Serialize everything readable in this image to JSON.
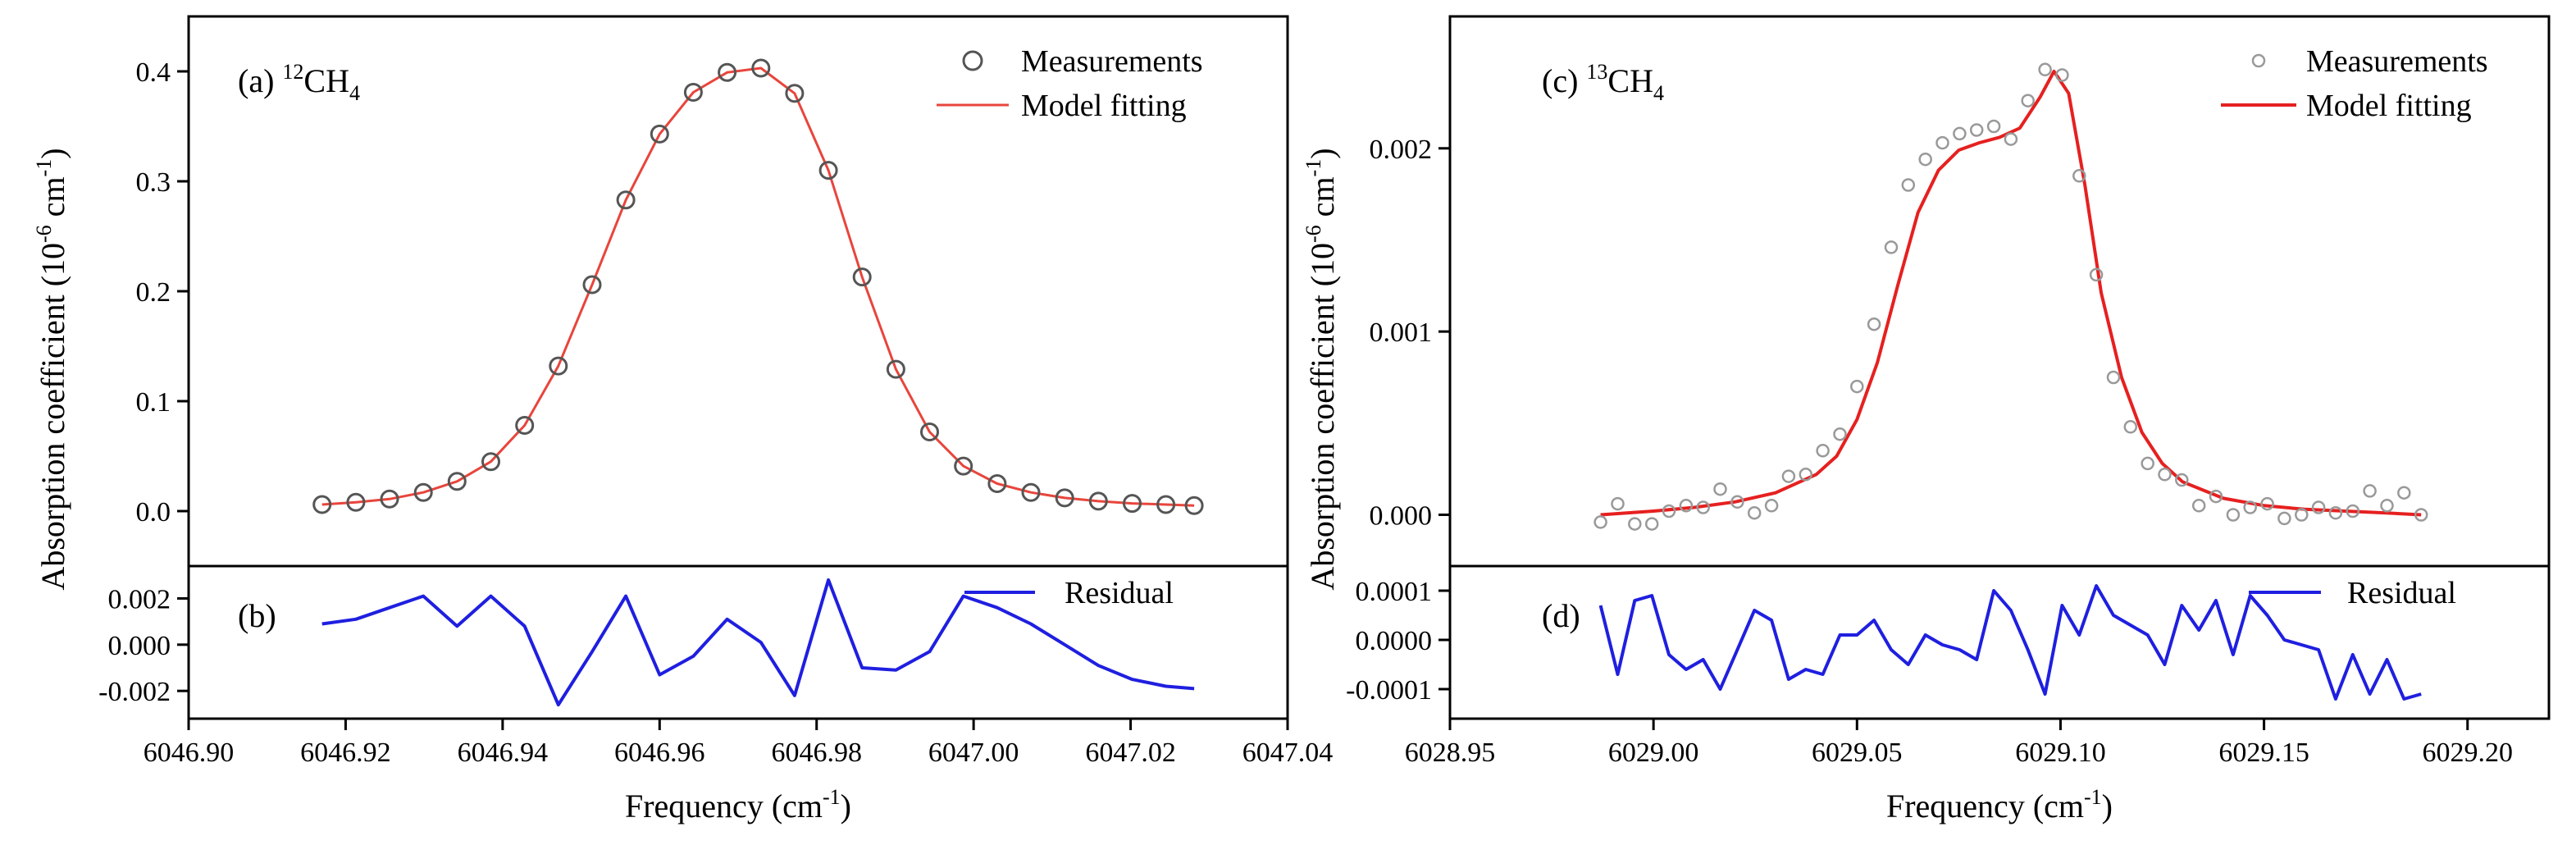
{
  "chart_data": [
    {
      "panel": "a",
      "type": "scatter",
      "panel_label": "(a) ",
      "species": {
        "mass": "12",
        "base": "CH",
        "sub": "4"
      },
      "ylabel": {
        "pre": "Absorption coefficient (10",
        "sup": "-6",
        "post": " cm",
        "sup2": "-1",
        "end": ")"
      },
      "xlim": [
        6046.9,
        6047.04
      ],
      "ylim": [
        -0.05,
        0.45
      ],
      "yticks": [
        "0.0",
        "0.1",
        "0.2",
        "0.3",
        "0.4"
      ],
      "ytick_values": [
        0.0,
        0.1,
        0.2,
        0.3,
        0.4
      ],
      "legend": [
        "Measurements",
        "Model fitting"
      ],
      "legend_position": "top-right",
      "series": [
        {
          "name": "Measurements",
          "marker": "open-circle",
          "color": "#555555",
          "x": [
            6046.917,
            6046.9213,
            6046.9256,
            6046.9299,
            6046.9342,
            6046.9385,
            6046.9428,
            6046.9471,
            6046.9514,
            6046.9557,
            6046.96,
            6046.9643,
            6046.9686,
            6046.9729,
            6046.9772,
            6046.9815,
            6046.9858,
            6046.9901,
            6046.9944,
            6046.9987,
            6047.003,
            6047.0073,
            6047.0116,
            6047.0159,
            6047.0202,
            6047.0245,
            6047.0281
          ],
          "y": [
            0.006,
            0.008,
            0.011,
            0.017,
            0.027,
            0.045,
            0.078,
            0.132,
            0.206,
            0.283,
            0.343,
            0.381,
            0.399,
            0.403,
            0.38,
            0.31,
            0.213,
            0.129,
            0.072,
            0.041,
            0.025,
            0.017,
            0.012,
            0.009,
            0.007,
            0.006,
            0.005
          ]
        },
        {
          "name": "Model fitting",
          "marker": "line",
          "color": "#e8453c",
          "x": [
            6046.917,
            6046.9213,
            6046.9256,
            6046.9299,
            6046.9342,
            6046.9385,
            6046.9428,
            6046.9471,
            6046.9514,
            6046.9557,
            6046.96,
            6046.9643,
            6046.9686,
            6046.9729,
            6046.9772,
            6046.9815,
            6046.9858,
            6046.9901,
            6046.9944,
            6046.9987,
            6047.003,
            6047.0073,
            6047.0116,
            6047.0159,
            6047.0202,
            6047.0245,
            6047.0281
          ],
          "y": [
            0.006,
            0.008,
            0.011,
            0.017,
            0.027,
            0.045,
            0.078,
            0.132,
            0.206,
            0.283,
            0.343,
            0.381,
            0.399,
            0.403,
            0.38,
            0.31,
            0.213,
            0.129,
            0.072,
            0.041,
            0.025,
            0.017,
            0.012,
            0.009,
            0.007,
            0.006,
            0.005
          ]
        }
      ]
    },
    {
      "panel": "b",
      "type": "line",
      "panel_label": "(b)",
      "xlabel": {
        "pre": "Frequency (cm",
        "sup": "-1",
        "end": ")"
      },
      "xlim": [
        6046.9,
        6047.04
      ],
      "xticks": [
        "6046.90",
        "6046.92",
        "6046.94",
        "6046.96",
        "6046.98",
        "6047.00",
        "6047.02",
        "6047.04"
      ],
      "xtick_values": [
        6046.9,
        6046.92,
        6046.94,
        6046.96,
        6046.98,
        6047.0,
        6047.02,
        6047.04
      ],
      "ylim": [
        -0.0032,
        0.0034
      ],
      "yticks": [
        "0.002",
        "0.000",
        "-0.002"
      ],
      "ytick_values": [
        0.002,
        0.0,
        -0.002
      ],
      "legend": [
        "Residual"
      ],
      "legend_position": "top-right",
      "series": [
        {
          "name": "Residual",
          "color": "#1f1fe0",
          "x": [
            6046.917,
            6046.9213,
            6046.9256,
            6046.9299,
            6046.9342,
            6046.9385,
            6046.9428,
            6046.9471,
            6046.9514,
            6046.9557,
            6046.96,
            6046.9643,
            6046.9686,
            6046.9729,
            6046.9772,
            6046.9815,
            6046.9858,
            6046.9901,
            6046.9944,
            6046.9987,
            6047.003,
            6047.0073,
            6047.0116,
            6047.0159,
            6047.0202,
            6047.0245,
            6047.0281
          ],
          "y": [
            0.0009,
            0.0011,
            0.0016,
            0.0021,
            0.0008,
            0.0021,
            0.0008,
            -0.0026,
            -0.0003,
            0.0021,
            -0.0013,
            -0.0005,
            0.0011,
            0.0001,
            -0.0022,
            0.0028,
            -0.001,
            -0.0011,
            -0.0003,
            0.0021,
            0.0016,
            0.0009,
            0.0,
            -0.0009,
            -0.0015,
            -0.0018,
            -0.0019
          ]
        }
      ]
    },
    {
      "panel": "c",
      "type": "scatter",
      "panel_label": "(c) ",
      "species": {
        "mass": "13",
        "base": "CH",
        "sub": "4"
      },
      "ylabel": {
        "pre": "Absorption coefficient (10",
        "sup": "-6",
        "post": " cm",
        "sup2": "-1",
        "end": ")"
      },
      "xlim": [
        6028.95,
        6029.22
      ],
      "ylim": [
        -0.00028,
        0.00272
      ],
      "yticks": [
        "0.000",
        "0.001",
        "0.002"
      ],
      "ytick_values": [
        0.0,
        0.001,
        0.002
      ],
      "legend": [
        "Measurements",
        "Model fitting"
      ],
      "legend_position": "top-right",
      "series": [
        {
          "name": "Measurements",
          "marker": "open-circle",
          "color": "#999999",
          "x": [
            6028.987,
            6028.9912,
            6028.9954,
            6028.9996,
            6029.0038,
            6029.008,
            6029.0122,
            6029.0164,
            6029.0206,
            6029.0248,
            6029.029,
            6029.0332,
            6029.0374,
            6029.0416,
            6029.0458,
            6029.05,
            6029.0542,
            6029.0584,
            6029.0626,
            6029.0668,
            6029.071,
            6029.0752,
            6029.0794,
            6029.0836,
            6029.0878,
            6029.092,
            6029.0962,
            6029.1004,
            6029.1046,
            6029.1088,
            6029.113,
            6029.1172,
            6029.1214,
            6029.1256,
            6029.1298,
            6029.134,
            6029.1382,
            6029.1424,
            6029.1466,
            6029.1508,
            6029.155,
            6029.1592,
            6029.1634,
            6029.1676,
            6029.1718,
            6029.176,
            6029.1802,
            6029.1844,
            6029.1886
          ],
          "y": [
            -4e-05,
            6e-05,
            -5e-05,
            -5e-05,
            2e-05,
            5e-05,
            4e-05,
            0.00014,
            7e-05,
            1e-05,
            5e-05,
            0.00021,
            0.00022,
            0.00035,
            0.00044,
            0.0007,
            0.00104,
            0.00146,
            0.0018,
            0.00194,
            0.00203,
            0.00208,
            0.0021,
            0.00212,
            0.00205,
            0.00226,
            0.00243,
            0.0024,
            0.00185,
            0.00131,
            0.00075,
            0.00048,
            0.00028,
            0.00022,
            0.00019,
            5e-05,
            0.0001,
            0.0,
            4e-05,
            6e-05,
            -2e-05,
            0.0,
            4e-05,
            1e-05,
            2e-05,
            0.00013,
            5e-05,
            0.00012,
            0.0
          ]
        },
        {
          "name": "Model fitting",
          "marker": "line",
          "color": "#e62020",
          "x": [
            6028.987,
            6029.0,
            6029.01,
            6029.02,
            6029.03,
            6029.04,
            6029.045,
            6029.05,
            6029.055,
            6029.06,
            6029.065,
            6029.07,
            6029.075,
            6029.08,
            6029.085,
            6029.09,
            6029.095,
            6029.0984,
            6029.102,
            6029.106,
            6029.11,
            6029.115,
            6029.12,
            6029.125,
            6029.13,
            6029.14,
            6029.15,
            6029.16,
            6029.17,
            6029.18,
            6029.1886
          ],
          "y": [
            0.0,
            2e-05,
            4e-05,
            7e-05,
            0.00012,
            0.00022,
            0.00032,
            0.00052,
            0.00083,
            0.00125,
            0.00165,
            0.00188,
            0.00199,
            0.00203,
            0.00206,
            0.00211,
            0.00228,
            0.00242,
            0.0023,
            0.0018,
            0.00121,
            0.00075,
            0.00045,
            0.00028,
            0.00018,
            9e-05,
            5e-05,
            3e-05,
            2e-05,
            1e-05,
            0.0
          ]
        }
      ]
    },
    {
      "panel": "d",
      "type": "line",
      "panel_label": "(d)",
      "xlabel": {
        "pre": "Frequency (cm",
        "sup": "-1",
        "end": ")"
      },
      "xlim": [
        6028.95,
        6029.22
      ],
      "xticks": [
        "6028.95",
        "6029.00",
        "6029.05",
        "6029.10",
        "6029.15",
        "6029.20"
      ],
      "xtick_values": [
        6028.95,
        6029.0,
        6029.05,
        6029.1,
        6029.15,
        6029.2
      ],
      "ylim": [
        -0.00016,
        0.00015
      ],
      "yticks": [
        "0.0001",
        "0.0000",
        "-0.0001"
      ],
      "ytick_values": [
        0.0001,
        0.0,
        -0.0001
      ],
      "legend": [
        "Residual"
      ],
      "legend_position": "top-right",
      "series": [
        {
          "name": "Residual",
          "color": "#1f1fe0",
          "x": [
            6028.987,
            6028.9912,
            6028.9954,
            6028.9996,
            6029.0038,
            6029.008,
            6029.0122,
            6029.0164,
            6029.0206,
            6029.0248,
            6029.029,
            6029.0332,
            6029.0374,
            6029.0416,
            6029.0458,
            6029.05,
            6029.0542,
            6029.0584,
            6029.0626,
            6029.0668,
            6029.071,
            6029.0752,
            6029.0794,
            6029.0836,
            6029.0878,
            6029.092,
            6029.0962,
            6029.1004,
            6029.1046,
            6029.1088,
            6029.113,
            6029.1172,
            6029.1214,
            6029.1256,
            6029.1298,
            6029.134,
            6029.1382,
            6029.1424,
            6029.1466,
            6029.1508,
            6029.155,
            6029.1592,
            6029.1634,
            6029.1676,
            6029.1718,
            6029.176,
            6029.1802,
            6029.1844,
            6029.1886
          ],
          "y": [
            7e-05,
            -7e-05,
            8e-05,
            9e-05,
            -3e-05,
            -6e-05,
            -4e-05,
            -0.0001,
            -2e-05,
            6e-05,
            4e-05,
            -8e-05,
            -6e-05,
            -7e-05,
            1e-05,
            1e-05,
            4e-05,
            -2e-05,
            -5e-05,
            1e-05,
            -1e-05,
            -2e-05,
            -4e-05,
            0.0001,
            6e-05,
            -2e-05,
            -0.00011,
            7e-05,
            1e-05,
            0.00011,
            5e-05,
            3e-05,
            1e-05,
            -5e-05,
            7e-05,
            2e-05,
            8e-05,
            -3e-05,
            9e-05,
            5e-05,
            0.0,
            -1e-05,
            -2e-05,
            -0.00012,
            -3e-05,
            -0.00011,
            -4e-05,
            -0.00012,
            -0.00011
          ]
        }
      ]
    }
  ]
}
